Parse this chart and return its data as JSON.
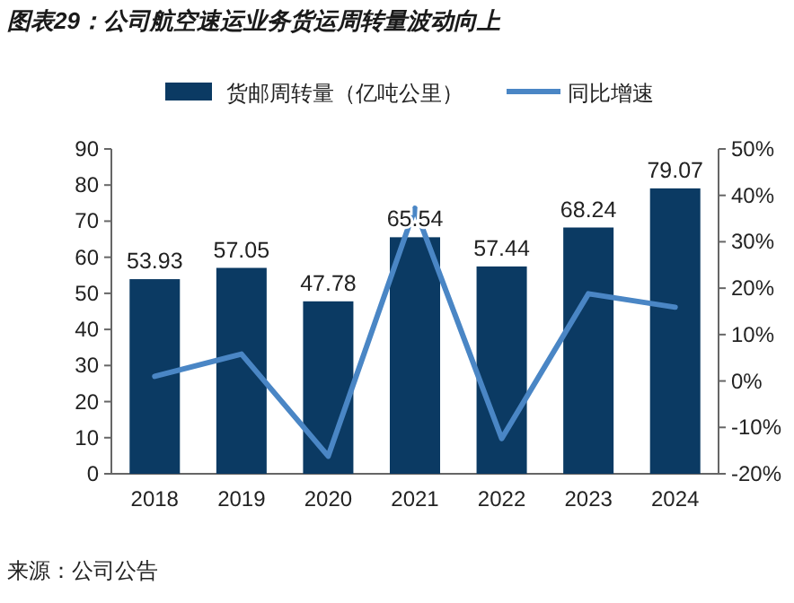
{
  "chart_data": {
    "type": "bar",
    "title": "图表29：公司航空速运业务货运周转量波动向上",
    "categories": [
      "2018",
      "2019",
      "2020",
      "2021",
      "2022",
      "2023",
      "2024"
    ],
    "series": [
      {
        "name": "货邮周转量（亿吨公里）",
        "color": "#0b3a63",
        "values": [
          53.93,
          57.05,
          47.78,
          65.54,
          57.44,
          68.24,
          79.07
        ],
        "value_labels": [
          "53.93",
          "57.05",
          "47.78",
          "65.54",
          "57.44",
          "68.24",
          "79.07"
        ]
      },
      {
        "name": "同比增速",
        "type": "line",
        "axis": "y2",
        "color": "#4a86c5",
        "values": [
          1,
          5.8,
          -16.2,
          37.2,
          -12.4,
          18.8,
          15.9
        ]
      }
    ],
    "ylim": [
      0,
      90
    ],
    "yticks": [
      0,
      10,
      20,
      30,
      40,
      50,
      60,
      70,
      80,
      90
    ],
    "y2lim": [
      -20,
      50
    ],
    "y2ticks": [
      {
        "value": -20,
        "label": "-20%"
      },
      {
        "value": -10,
        "label": "-10%"
      },
      {
        "value": 0,
        "label": "0%"
      },
      {
        "value": 10,
        "label": "10%"
      },
      {
        "value": 20,
        "label": "20%"
      },
      {
        "value": 30,
        "label": "30%"
      },
      {
        "value": 40,
        "label": "40%"
      },
      {
        "value": 50,
        "label": "50%"
      }
    ],
    "legend": "top",
    "grid": false,
    "annotations": [
      "来源：公司公告"
    ]
  }
}
